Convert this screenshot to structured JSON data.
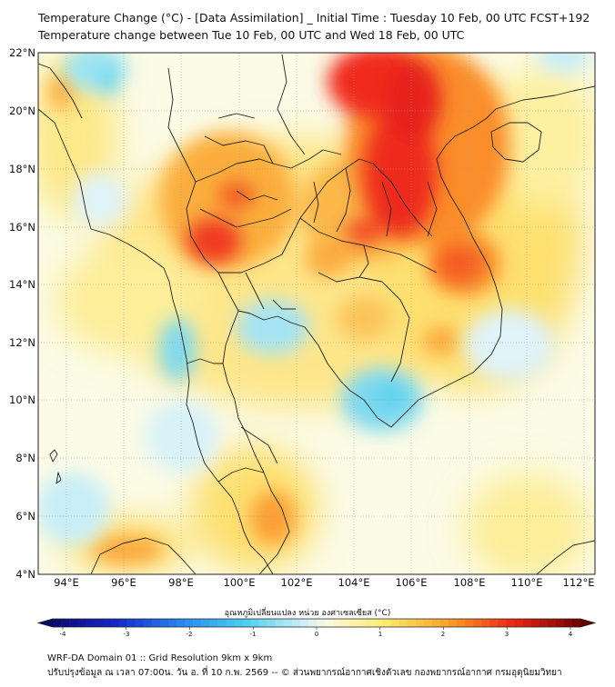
{
  "title_line1": "Temperature Change (°C) - [Data Assimilation] _ Initial Time : Tuesday 10 Feb, 00 UTC FCST+192",
  "title_line2": "Temperature change between Tue 10 Feb, 00 UTC and Wed 18 Feb, 00 UTC",
  "lat_labels": [
    "22°N",
    "20°N",
    "18°N",
    "16°N",
    "14°N",
    "12°N",
    "10°N",
    "8°N",
    "6°N",
    "4°N"
  ],
  "lon_labels": [
    "94°E",
    "96°E",
    "98°E",
    "100°E",
    "102°E",
    "104°E",
    "106°E",
    "108°E",
    "110°E",
    "112°E"
  ],
  "colorbar": {
    "title": "อุณหภูมิเปลี่ยนแปลง หน่วย องศาเซลเซียส (°C)",
    "ticks": [
      "-4",
      "-3",
      "-2",
      "-1",
      "0",
      "1",
      "2",
      "3",
      "4"
    ],
    "min": -4,
    "max": 4
  },
  "footer_line1": "WRF-DA Domain 01 :: Grid Resolution 9km x 9km",
  "footer_line2": "ปรับปรุงข้อมูล ณ เวลา 07:00น. วัน อ. ที่ 10 ก.พ. 2569 -- © ส่วนพยากรณ์อากาศเชิงตัวเลข กองพยากรณ์อากาศ กรมอุตุนิยมวิทยา",
  "colors": {
    "neutral": "#fbfbe6",
    "warm_yellow": "#fde76c",
    "warm_orange": "#fb9b2c",
    "hot_red": "#f0251b",
    "cool_blue": "#5dd3ef"
  }
}
